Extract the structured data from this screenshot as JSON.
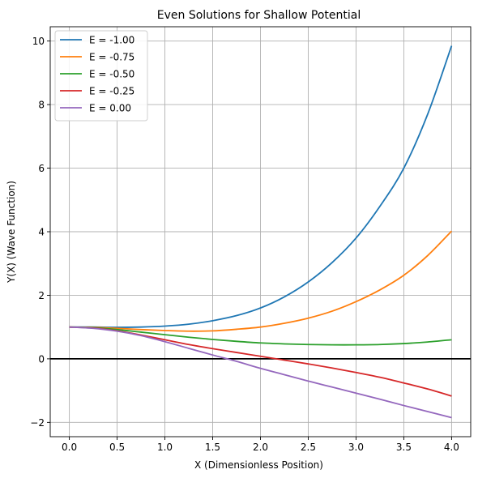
{
  "chart_data": {
    "type": "line",
    "title": "Even Solutions for Shallow Potential",
    "xlabel": "X (Dimensionless Position)",
    "ylabel": "Y(X) (Wave Function)",
    "xlim": [
      -0.2,
      4.2
    ],
    "ylim": [
      -2.45,
      10.45
    ],
    "xticks": [
      0.0,
      0.5,
      1.0,
      1.5,
      2.0,
      2.5,
      3.0,
      3.5,
      4.0
    ],
    "xtick_labels": [
      "0.0",
      "0.5",
      "1.0",
      "1.5",
      "2.0",
      "2.5",
      "3.0",
      "3.5",
      "4.0"
    ],
    "yticks": [
      -2,
      0,
      2,
      4,
      6,
      8,
      10
    ],
    "ytick_labels": [
      "−2",
      "0",
      "2",
      "4",
      "6",
      "8",
      "10"
    ],
    "grid": true,
    "legend_position": "top-left",
    "reference_lines": [
      {
        "axis": "y",
        "value": 0,
        "color": "#000000"
      }
    ],
    "x": [
      0.0,
      0.25,
      0.5,
      0.75,
      1.0,
      1.25,
      1.5,
      1.75,
      2.0,
      2.25,
      2.5,
      2.75,
      3.0,
      3.25,
      3.5,
      3.75,
      4.0
    ],
    "series": [
      {
        "name": "E = -1.00",
        "color": "#1f77b4",
        "values": [
          1.0,
          1.0,
          0.99,
          1.0,
          1.03,
          1.09,
          1.2,
          1.36,
          1.6,
          1.95,
          2.42,
          3.03,
          3.8,
          4.8,
          6.0,
          7.7,
          9.85
        ]
      },
      {
        "name": "E = -0.75",
        "color": "#ff7f0e",
        "values": [
          1.0,
          0.99,
          0.96,
          0.92,
          0.89,
          0.87,
          0.88,
          0.93,
          1.0,
          1.12,
          1.28,
          1.5,
          1.8,
          2.17,
          2.63,
          3.25,
          4.02
        ]
      },
      {
        "name": "E = -0.50",
        "color": "#2ca02c",
        "values": [
          1.0,
          0.98,
          0.92,
          0.84,
          0.76,
          0.68,
          0.61,
          0.55,
          0.5,
          0.47,
          0.45,
          0.44,
          0.44,
          0.45,
          0.48,
          0.53,
          0.6
        ]
      },
      {
        "name": "E = -0.25",
        "color": "#d62728",
        "values": [
          1.0,
          0.97,
          0.88,
          0.75,
          0.6,
          0.45,
          0.32,
          0.2,
          0.08,
          -0.04,
          -0.16,
          -0.29,
          -0.43,
          -0.58,
          -0.76,
          -0.95,
          -1.17
        ]
      },
      {
        "name": "E = 0.00",
        "color": "#9467bd",
        "values": [
          1.0,
          0.96,
          0.87,
          0.73,
          0.54,
          0.33,
          0.12,
          -0.08,
          -0.3,
          -0.5,
          -0.7,
          -0.89,
          -1.08,
          -1.27,
          -1.47,
          -1.66,
          -1.85
        ]
      }
    ]
  }
}
